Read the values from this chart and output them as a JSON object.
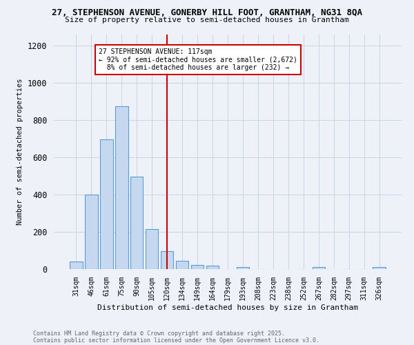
{
  "title1": "27, STEPHENSON AVENUE, GONERBY HILL FOOT, GRANTHAM, NG31 8QA",
  "title2": "Size of property relative to semi-detached houses in Grantham",
  "xlabel": "Distribution of semi-detached houses by size in Grantham",
  "ylabel": "Number of semi-detached properties",
  "footnote1": "Contains HM Land Registry data © Crown copyright and database right 2025.",
  "footnote2": "Contains public sector information licensed under the Open Government Licence v3.0.",
  "bar_labels": [
    "31sqm",
    "46sqm",
    "61sqm",
    "75sqm",
    "90sqm",
    "105sqm",
    "120sqm",
    "134sqm",
    "149sqm",
    "164sqm",
    "179sqm",
    "193sqm",
    "208sqm",
    "223sqm",
    "238sqm",
    "252sqm",
    "267sqm",
    "282sqm",
    "297sqm",
    "311sqm",
    "326sqm"
  ],
  "bar_values": [
    40,
    400,
    695,
    875,
    495,
    215,
    95,
    45,
    22,
    20,
    0,
    10,
    0,
    0,
    0,
    0,
    10,
    0,
    0,
    0,
    10
  ],
  "bar_color": "#c5d8f0",
  "bar_edge_color": "#5b9bd5",
  "grid_color": "#c8d4e4",
  "background_color": "#eef2f8",
  "vline_x": 6,
  "vline_color": "#cc0000",
  "annotation_line1": "27 STEPHENSON AVENUE: 117sqm",
  "annotation_line2": "← 92% of semi-detached houses are smaller (2,672)",
  "annotation_line3": "  8% of semi-detached houses are larger (232) →",
  "annotation_box_color": "#ffffff",
  "annotation_box_edge": "#cc0000",
  "ylim": [
    0,
    1260
  ],
  "yticks": [
    0,
    200,
    400,
    600,
    800,
    1000,
    1200
  ]
}
